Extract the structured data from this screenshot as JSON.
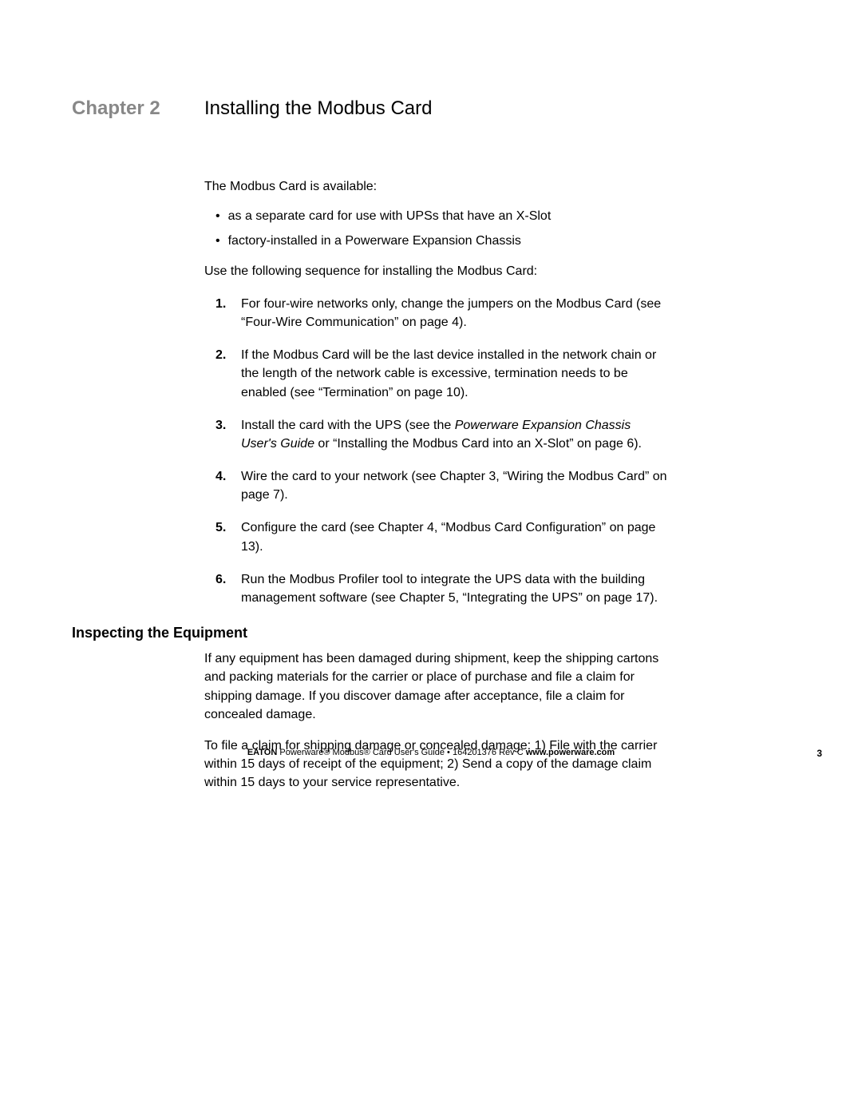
{
  "chapter": {
    "label": "Chapter 2",
    "title": "Installing the Modbus Card"
  },
  "intro": "The Modbus Card is available:",
  "bullets": [
    "as a separate card for use with UPSs that have an X-Slot",
    "factory-installed in a Powerware Expansion Chassis"
  ],
  "use_text": "Use the following sequence for installing the Modbus Card:",
  "steps": [
    {
      "num": "1.",
      "text": "For four-wire networks only, change the jumpers on the Modbus Card (see “Four-Wire Communication” on page 4)."
    },
    {
      "num": "2.",
      "text": "If the Modbus Card will be the last device installed in the network chain or the length of the network cable is excessive, termination needs to be enabled (see “Termination” on page 10)."
    },
    {
      "num": "3.",
      "pre": "Install the card with the UPS (see the ",
      "italic": "Powerware Expansion Chassis User's Guide",
      "post": " or “Installing the Modbus Card into an X-Slot” on page 6)."
    },
    {
      "num": "4.",
      "text": "Wire the card to your network (see Chapter 3, “Wiring the Modbus Card” on page 7)."
    },
    {
      "num": "5.",
      "text": "Configure the card (see Chapter 4, “Modbus Card Configuration” on page 13)."
    },
    {
      "num": "6.",
      "text": "Run the Modbus Profiler tool to integrate the UPS data with the building management software (see Chapter 5, “Integrating the UPS” on page 17)."
    }
  ],
  "section": {
    "heading": "Inspecting the Equipment",
    "paras": [
      "If any equipment has been damaged during shipment, keep the shipping cartons and packing materials for the carrier or place of purchase and file a claim for shipping damage. If you discover damage after acceptance, file a claim for concealed damage.",
      "To file a claim for shipping damage or concealed damage:  1) File with the carrier within 15 days of receipt of the equipment; 2) Send a copy of the damage claim within 15 days to your service representative."
    ]
  },
  "footer": {
    "brand": "EATON",
    "mid": " Powerware® Modbus® Card User's Guide ",
    "sep": "•",
    "rev": " 164201376 Rev C ",
    "url": "www.powerware.com",
    "page": "3"
  },
  "colors": {
    "chapter_label": "#888888",
    "text": "#000000",
    "background": "#ffffff"
  },
  "typography": {
    "body_fontsize": 16,
    "heading_fontsize": 24,
    "section_heading_fontsize": 18,
    "footer_fontsize": 11
  }
}
